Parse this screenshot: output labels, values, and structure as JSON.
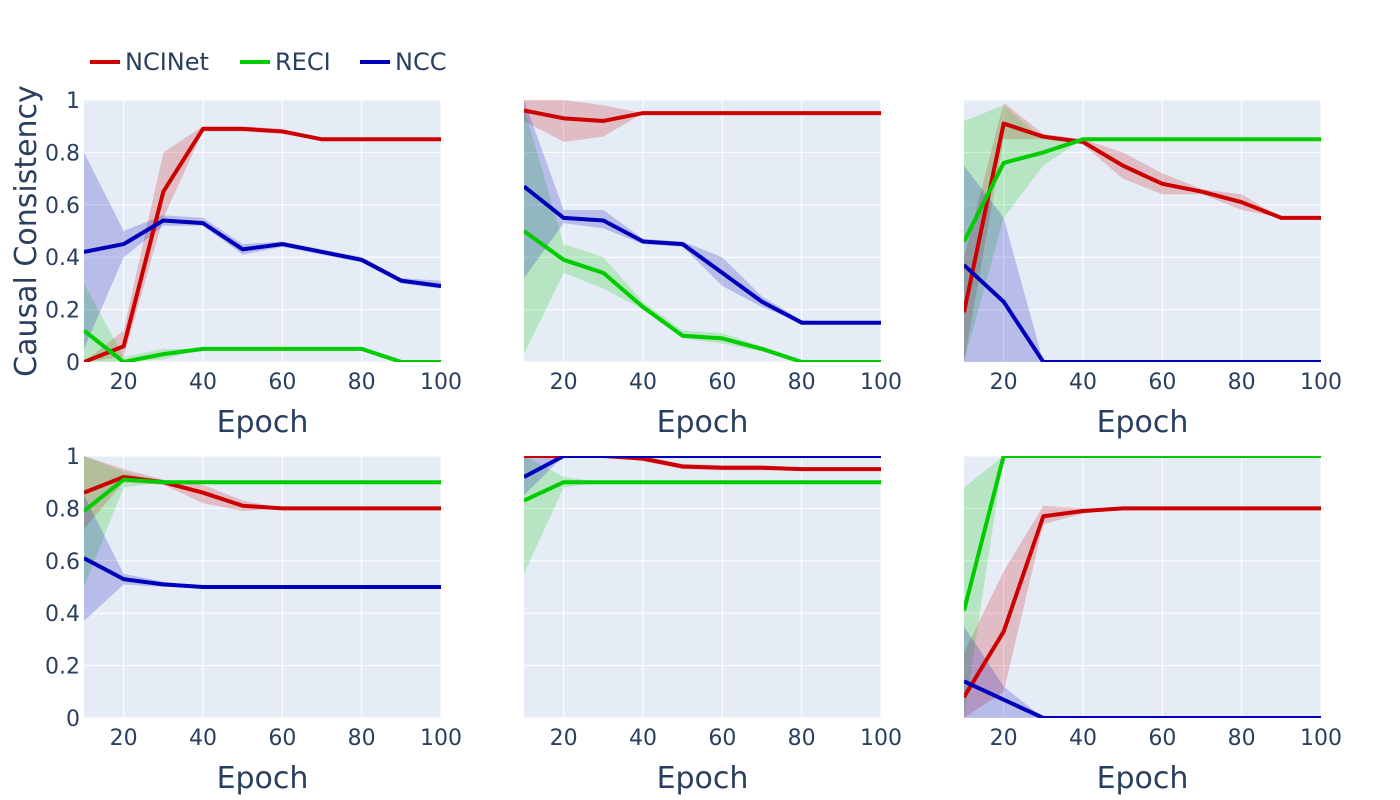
{
  "chart_data": {
    "type": "line",
    "ylabel": "Causal Consistency",
    "xlabel": "Epoch",
    "xlim": [
      10,
      100
    ],
    "ylim": [
      0,
      1
    ],
    "xticks": [
      20,
      40,
      60,
      80,
      100
    ],
    "yticks": [
      0,
      0.2,
      0.4,
      0.6,
      0.8,
      1
    ],
    "yticklabels": [
      "0",
      "0.2",
      "0.4",
      "0.6",
      "0.8",
      "1"
    ],
    "x": [
      10,
      20,
      30,
      40,
      50,
      60,
      70,
      80,
      90,
      100
    ],
    "legend": [
      {
        "name": "NCINet",
        "color": "#cc0000"
      },
      {
        "name": "RECI",
        "color": "#00cc00"
      },
      {
        "name": "NCC",
        "color": "#0000bb"
      }
    ],
    "legend_position": "top-left",
    "band_opacity": 0.2,
    "panels": [
      {
        "series": [
          {
            "name": "NCINet",
            "values": [
              0.0,
              0.06,
              0.65,
              0.89,
              0.89,
              0.88,
              0.85,
              0.85,
              0.85,
              0.85
            ],
            "lower": [
              0.0,
              0.02,
              0.55,
              0.88,
              0.88,
              0.87,
              0.85,
              0.85,
              0.85,
              0.85
            ],
            "upper": [
              0.0,
              0.12,
              0.8,
              0.9,
              0.9,
              0.89,
              0.85,
              0.85,
              0.85,
              0.85
            ]
          },
          {
            "name": "RECI",
            "values": [
              0.12,
              0.0,
              0.03,
              0.05,
              0.05,
              0.05,
              0.05,
              0.05,
              0.0,
              0.0
            ],
            "lower": [
              0.0,
              0.0,
              0.01,
              0.05,
              0.05,
              0.05,
              0.05,
              0.05,
              0.0,
              0.0
            ],
            "upper": [
              0.3,
              0.02,
              0.05,
              0.05,
              0.05,
              0.05,
              0.05,
              0.05,
              0.0,
              0.0
            ]
          },
          {
            "name": "NCC",
            "values": [
              0.42,
              0.45,
              0.54,
              0.53,
              0.43,
              0.45,
              0.42,
              0.39,
              0.31,
              0.29
            ],
            "lower": [
              0.05,
              0.4,
              0.52,
              0.52,
              0.41,
              0.44,
              0.41,
              0.38,
              0.3,
              0.28
            ],
            "upper": [
              0.8,
              0.5,
              0.56,
              0.55,
              0.45,
              0.46,
              0.43,
              0.4,
              0.32,
              0.31
            ]
          }
        ]
      },
      {
        "series": [
          {
            "name": "NCINet",
            "values": [
              0.96,
              0.93,
              0.92,
              0.95,
              0.95,
              0.95,
              0.95,
              0.95,
              0.95,
              0.95
            ],
            "lower": [
              0.92,
              0.84,
              0.86,
              0.95,
              0.95,
              0.95,
              0.95,
              0.95,
              0.95,
              0.95
            ],
            "upper": [
              1.0,
              1.0,
              0.98,
              0.95,
              0.95,
              0.95,
              0.95,
              0.95,
              0.95,
              0.95
            ]
          },
          {
            "name": "RECI",
            "values": [
              0.5,
              0.39,
              0.34,
              0.21,
              0.1,
              0.09,
              0.05,
              0.0,
              0.0,
              0.0
            ],
            "lower": [
              0.03,
              0.34,
              0.28,
              0.2,
              0.09,
              0.07,
              0.04,
              0.0,
              0.0,
              0.0
            ],
            "upper": [
              0.97,
              0.45,
              0.4,
              0.23,
              0.12,
              0.11,
              0.06,
              0.01,
              0.0,
              0.0
            ]
          },
          {
            "name": "NCC",
            "values": [
              0.67,
              0.55,
              0.54,
              0.46,
              0.45,
              0.34,
              0.23,
              0.15,
              0.15,
              0.15
            ],
            "lower": [
              0.32,
              0.53,
              0.51,
              0.45,
              0.44,
              0.29,
              0.21,
              0.15,
              0.15,
              0.15
            ],
            "upper": [
              1.0,
              0.58,
              0.58,
              0.47,
              0.46,
              0.4,
              0.25,
              0.16,
              0.15,
              0.15
            ]
          }
        ]
      },
      {
        "series": [
          {
            "name": "NCINet",
            "values": [
              0.19,
              0.91,
              0.86,
              0.84,
              0.75,
              0.68,
              0.65,
              0.61,
              0.55,
              0.55
            ],
            "lower": [
              0.0,
              0.85,
              0.85,
              0.83,
              0.7,
              0.64,
              0.64,
              0.58,
              0.55,
              0.55
            ],
            "upper": [
              0.4,
              0.99,
              0.87,
              0.85,
              0.8,
              0.72,
              0.66,
              0.64,
              0.55,
              0.55
            ]
          },
          {
            "name": "RECI",
            "values": [
              0.46,
              0.76,
              0.8,
              0.85,
              0.85,
              0.85,
              0.85,
              0.85,
              0.85,
              0.85
            ],
            "lower": [
              0.0,
              0.55,
              0.75,
              0.85,
              0.85,
              0.85,
              0.85,
              0.85,
              0.85,
              0.85
            ],
            "upper": [
              0.92,
              0.98,
              0.85,
              0.85,
              0.85,
              0.85,
              0.85,
              0.85,
              0.85,
              0.85
            ]
          },
          {
            "name": "NCC",
            "values": [
              0.37,
              0.23,
              0.0,
              0.0,
              0.0,
              0.0,
              0.0,
              0.0,
              0.0,
              0.0
            ],
            "lower": [
              0.0,
              0.0,
              0.0,
              0.0,
              0.0,
              0.0,
              0.0,
              0.0,
              0.0,
              0.0
            ],
            "upper": [
              0.75,
              0.55,
              0.0,
              0.0,
              0.0,
              0.0,
              0.0,
              0.0,
              0.0,
              0.0
            ]
          }
        ]
      },
      {
        "series": [
          {
            "name": "NCINet",
            "values": [
              0.86,
              0.92,
              0.9,
              0.86,
              0.81,
              0.8,
              0.8,
              0.8,
              0.8,
              0.8
            ],
            "lower": [
              0.72,
              0.9,
              0.89,
              0.82,
              0.79,
              0.8,
              0.8,
              0.8,
              0.8,
              0.8
            ],
            "upper": [
              1.0,
              0.95,
              0.91,
              0.89,
              0.83,
              0.8,
              0.8,
              0.8,
              0.8,
              0.8
            ]
          },
          {
            "name": "RECI",
            "values": [
              0.79,
              0.91,
              0.9,
              0.9,
              0.9,
              0.9,
              0.9,
              0.9,
              0.9,
              0.9
            ],
            "lower": [
              0.5,
              0.88,
              0.9,
              0.9,
              0.9,
              0.9,
              0.9,
              0.9,
              0.9,
              0.9
            ],
            "upper": [
              1.0,
              0.94,
              0.9,
              0.9,
              0.9,
              0.9,
              0.9,
              0.9,
              0.9,
              0.9
            ]
          },
          {
            "name": "NCC",
            "values": [
              0.61,
              0.53,
              0.51,
              0.5,
              0.5,
              0.5,
              0.5,
              0.5,
              0.5,
              0.5
            ],
            "lower": [
              0.37,
              0.51,
              0.5,
              0.5,
              0.5,
              0.5,
              0.5,
              0.5,
              0.5,
              0.5
            ],
            "upper": [
              0.85,
              0.55,
              0.52,
              0.5,
              0.5,
              0.5,
              0.5,
              0.5,
              0.5,
              0.5
            ]
          }
        ]
      },
      {
        "series": [
          {
            "name": "NCINet",
            "values": [
              1.0,
              1.0,
              1.0,
              0.99,
              0.96,
              0.955,
              0.955,
              0.95,
              0.95,
              0.95
            ],
            "lower": [
              1.0,
              1.0,
              1.0,
              0.98,
              0.95,
              0.945,
              0.945,
              0.945,
              0.95,
              0.95
            ],
            "upper": [
              1.0,
              1.0,
              1.0,
              1.0,
              0.97,
              0.965,
              0.965,
              0.955,
              0.95,
              0.95
            ]
          },
          {
            "name": "RECI",
            "values": [
              0.83,
              0.9,
              0.9,
              0.9,
              0.9,
              0.9,
              0.9,
              0.9,
              0.9,
              0.9
            ],
            "lower": [
              0.55,
              0.88,
              0.9,
              0.9,
              0.9,
              0.9,
              0.9,
              0.9,
              0.9,
              0.9
            ],
            "upper": [
              1.0,
              0.92,
              0.9,
              0.9,
              0.9,
              0.9,
              0.9,
              0.9,
              0.9,
              0.9
            ]
          },
          {
            "name": "NCC",
            "values": [
              0.92,
              1.0,
              1.0,
              1.0,
              1.0,
              1.0,
              1.0,
              1.0,
              1.0,
              1.0
            ],
            "lower": [
              0.85,
              1.0,
              1.0,
              1.0,
              1.0,
              1.0,
              1.0,
              1.0,
              1.0,
              1.0
            ],
            "upper": [
              1.0,
              1.0,
              1.0,
              1.0,
              1.0,
              1.0,
              1.0,
              1.0,
              1.0,
              1.0
            ]
          }
        ]
      },
      {
        "series": [
          {
            "name": "NCINet",
            "values": [
              0.08,
              0.33,
              0.77,
              0.79,
              0.8,
              0.8,
              0.8,
              0.8,
              0.8,
              0.8
            ],
            "lower": [
              0.0,
              0.1,
              0.74,
              0.78,
              0.8,
              0.8,
              0.8,
              0.8,
              0.8,
              0.8
            ],
            "upper": [
              0.25,
              0.56,
              0.81,
              0.8,
              0.8,
              0.8,
              0.8,
              0.8,
              0.8,
              0.8
            ]
          },
          {
            "name": "RECI",
            "values": [
              0.41,
              1.0,
              1.0,
              1.0,
              1.0,
              1.0,
              1.0,
              1.0,
              1.0,
              1.0
            ],
            "lower": [
              0.0,
              1.0,
              1.0,
              1.0,
              1.0,
              1.0,
              1.0,
              1.0,
              1.0,
              1.0
            ],
            "upper": [
              0.88,
              1.0,
              1.0,
              1.0,
              1.0,
              1.0,
              1.0,
              1.0,
              1.0,
              1.0
            ]
          },
          {
            "name": "NCC",
            "values": [
              0.14,
              0.07,
              0.0,
              0.0,
              0.0,
              0.0,
              0.0,
              0.0,
              0.0,
              0.0
            ],
            "lower": [
              0.0,
              0.0,
              0.0,
              0.0,
              0.0,
              0.0,
              0.0,
              0.0,
              0.0,
              0.0
            ],
            "upper": [
              0.35,
              0.12,
              0.0,
              0.0,
              0.0,
              0.0,
              0.0,
              0.0,
              0.0,
              0.0
            ]
          }
        ]
      }
    ]
  }
}
